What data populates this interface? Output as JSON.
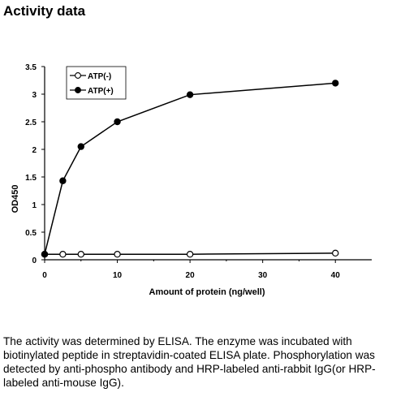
{
  "heading": "Activity data",
  "caption": "The activity was determined by ELISA. The enzyme was incubated with biotinylated peptide in streptavidin-coated ELISA plate. Phosphorylation was detected by anti-phospho antibody and HRP-labeled anti-rabbit IgG(or HRP-labeled anti-mouse IgG).",
  "chart_data": {
    "type": "line",
    "title": "",
    "xlabel": "Amount of protein (ng/well)",
    "ylabel": "OD450",
    "xlim": [
      0,
      45
    ],
    "ylim": [
      0,
      3.5
    ],
    "xticks": [
      "0",
      "10",
      "20",
      "30",
      "40"
    ],
    "yticks": [
      "0",
      "0.5",
      "1",
      "1.5",
      "2",
      "2.5",
      "3",
      "3.5"
    ],
    "grid": false,
    "legend_position": "top-left",
    "series": [
      {
        "name": "ATP(-)",
        "marker": "open-circle",
        "color": "#000000",
        "x": [
          0,
          2.5,
          5,
          10,
          20,
          40
        ],
        "y": [
          0.1,
          0.1,
          0.1,
          0.1,
          0.1,
          0.12
        ]
      },
      {
        "name": "ATP(+)",
        "marker": "filled-circle",
        "color": "#000000",
        "x": [
          0,
          2.5,
          5,
          10,
          20,
          40
        ],
        "y": [
          0.1,
          1.43,
          2.05,
          2.5,
          2.99,
          3.2
        ]
      }
    ]
  }
}
